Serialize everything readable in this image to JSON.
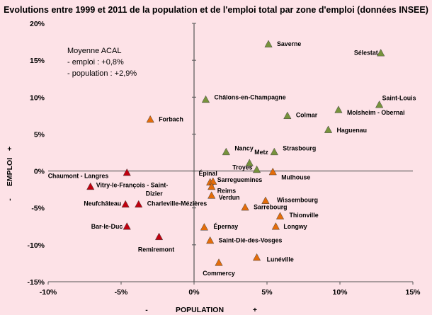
{
  "colors": {
    "background": "#fde2e7",
    "green": "#77933c",
    "orange": "#e46c0a",
    "red": "#c0000f",
    "axis": "#555555"
  },
  "chart_data": {
    "type": "scatter",
    "title": "Evolutions entre 1999 et 2011 de la population et de l'emploi total par zone d'emploi (données INSEE)",
    "xlabel": "POPULATION",
    "ylabel": "EMPLOI",
    "xlim": [
      -10,
      15
    ],
    "ylim": [
      -15,
      20
    ],
    "xticks": [
      "-10%",
      "-5%",
      "0%",
      "5%",
      "10%",
      "15%"
    ],
    "yticks": [
      "-15%",
      "-10%",
      "-5%",
      "0%",
      "5%",
      "10%",
      "15%",
      "20%"
    ],
    "grid": false,
    "x_minus": "-",
    "x_plus": "+",
    "y_minus": "-",
    "y_plus": "+",
    "annotation": [
      "Moyenne ACAL",
      "- emploi : +0,8%",
      "- population : +2,9%"
    ],
    "points": [
      {
        "label": "Saverne",
        "x": 5.1,
        "y": 17.2,
        "group": "green"
      },
      {
        "label": "Sélestat",
        "x": 12.8,
        "y": 16.0,
        "group": "green"
      },
      {
        "label": "Saint-Louis",
        "x": 12.7,
        "y": 9.0,
        "group": "green"
      },
      {
        "label": "Châlons-en-Champagne",
        "x": 0.8,
        "y": 9.7,
        "group": "green"
      },
      {
        "label": "Molsheim - Obernai",
        "x": 9.9,
        "y": 8.3,
        "group": "green"
      },
      {
        "label": "Colmar",
        "x": 6.4,
        "y": 7.5,
        "group": "green"
      },
      {
        "label": "Haguenau",
        "x": 9.2,
        "y": 5.6,
        "group": "green"
      },
      {
        "label": "Nancy",
        "x": 2.2,
        "y": 2.6,
        "group": "green"
      },
      {
        "label": "Strasbourg",
        "x": 5.5,
        "y": 2.6,
        "group": "green"
      },
      {
        "label": "Metz",
        "x": 3.8,
        "y": 1.1,
        "group": "green"
      },
      {
        "label": "Troyes",
        "x": 4.3,
        "y": 0.2,
        "group": "green"
      },
      {
        "label": "Forbach",
        "x": -3.0,
        "y": 7.0,
        "group": "orange"
      },
      {
        "label": "Mulhouse",
        "x": 5.4,
        "y": -0.1,
        "group": "orange"
      },
      {
        "label": "Épinal",
        "x": 1.1,
        "y": -1.5,
        "group": "orange"
      },
      {
        "label": "Sarreguemines",
        "x": 1.3,
        "y": -1.4,
        "group": "orange"
      },
      {
        "label": "Reims",
        "x": 1.2,
        "y": -2.1,
        "group": "orange"
      },
      {
        "label": "Verdun",
        "x": 1.2,
        "y": -3.3,
        "group": "orange"
      },
      {
        "label": "Wissembourg",
        "x": 4.9,
        "y": -4.0,
        "group": "orange"
      },
      {
        "label": "Sarrebourg",
        "x": 3.5,
        "y": -4.9,
        "group": "orange"
      },
      {
        "label": "Thionville",
        "x": 5.9,
        "y": -6.1,
        "group": "orange"
      },
      {
        "label": "Longwy",
        "x": 5.6,
        "y": -7.5,
        "group": "orange"
      },
      {
        "label": "Épernay",
        "x": 0.7,
        "y": -7.6,
        "group": "orange"
      },
      {
        "label": "Saint-Dié-des-Vosges",
        "x": 1.1,
        "y": -9.4,
        "group": "orange"
      },
      {
        "label": "Lunéville",
        "x": 4.3,
        "y": -11.7,
        "group": "orange"
      },
      {
        "label": "Commercy",
        "x": 1.7,
        "y": -12.4,
        "group": "orange"
      },
      {
        "label": "Chaumont - Langres",
        "x": -4.6,
        "y": -0.2,
        "group": "red"
      },
      {
        "label": "Vitry-le-François - Saint-Dizier",
        "x": -7.1,
        "y": -2.1,
        "group": "red"
      },
      {
        "label": "Neufchâteau",
        "x": -4.7,
        "y": -4.5,
        "group": "red"
      },
      {
        "label": "Charleville-Mézières",
        "x": -3.8,
        "y": -4.5,
        "group": "red"
      },
      {
        "label": "Bar-le-Duc",
        "x": -4.6,
        "y": -7.5,
        "group": "red"
      },
      {
        "label": "Remiremont",
        "x": -2.4,
        "y": -8.9,
        "group": "red"
      }
    ]
  }
}
